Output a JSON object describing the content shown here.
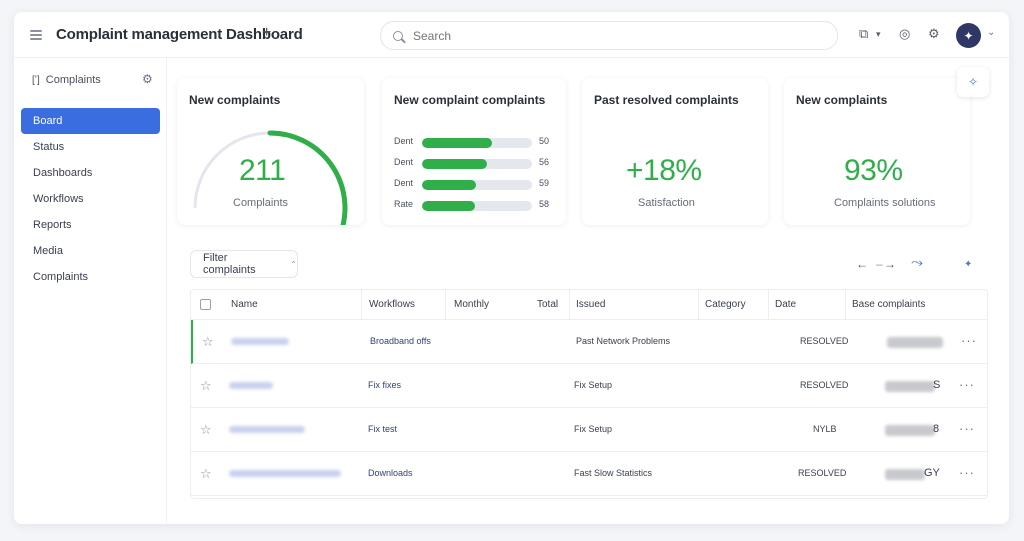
{
  "header": {
    "title": "Complaint management Dashboard",
    "add_tab": "+",
    "search_placeholder": "Search",
    "icons": [
      "cube-icon",
      "caret-icon",
      "help-icon",
      "bell-icon"
    ],
    "avatar_glyph": "✦",
    "avatar_caret": "⌄"
  },
  "sidebar": {
    "heading": "Complaints",
    "items": [
      {
        "label": "Board"
      },
      {
        "label": "Status"
      },
      {
        "label": "Dashboards"
      },
      {
        "label": "Workflows"
      },
      {
        "label": "Reports"
      },
      {
        "label": "Media"
      },
      {
        "label": "Complaints"
      }
    ]
  },
  "cards": [
    {
      "title": "New complaints",
      "value": "211",
      "caption": "Complaints",
      "gauge_fraction": 0.6
    },
    {
      "title": "New complaint complaints",
      "bars": [
        {
          "label": "Dent",
          "value": "50",
          "fraction": 0.64
        },
        {
          "label": "Dent",
          "value": "56",
          "fraction": 0.59
        },
        {
          "label": "Dent",
          "value": "59",
          "fraction": 0.49
        },
        {
          "label": "Rate",
          "value": "58",
          "fraction": 0.48
        }
      ]
    },
    {
      "title": "Past resolved complaints",
      "value": "+18%",
      "caption": "Satisfaction"
    },
    {
      "title": "New complaints",
      "value": "93%",
      "caption": "Complaints solutions"
    }
  ],
  "float_button_glyph": "✧",
  "filter": {
    "label": "Filter complaints",
    "caret": "⌃"
  },
  "nav": {
    "prev": "←",
    "next": "→",
    "link": "⤳",
    "add": "✦"
  },
  "table": {
    "headers": [
      "Name",
      "Workflows",
      "Monthly",
      "Total",
      "Issued",
      "Category",
      "Date",
      "Base complaints"
    ],
    "rows": [
      {
        "col1": "Broadband offs",
        "col2": "Past Network Problems",
        "status": "RESOLVED",
        "amount_suffix": "",
        "selected": true
      },
      {
        "col1": "Fix fixes",
        "col2": "Fix Setup",
        "status": "RESOLVED",
        "amount_suffix": "S",
        "selected": false
      },
      {
        "col1": "Fix test",
        "col2": "Fix Setup",
        "status": "NYLB",
        "amount_suffix": "8",
        "selected": false
      },
      {
        "col1": "Downloads",
        "col2": "Fast Slow Statistics",
        "status": "RESOLVED",
        "amount_suffix": "GY",
        "selected": false
      }
    ],
    "row_actions": "···"
  },
  "colors": {
    "accent": "#3a6de0",
    "positive": "#2fae4a",
    "avatar": "#2e3766"
  }
}
